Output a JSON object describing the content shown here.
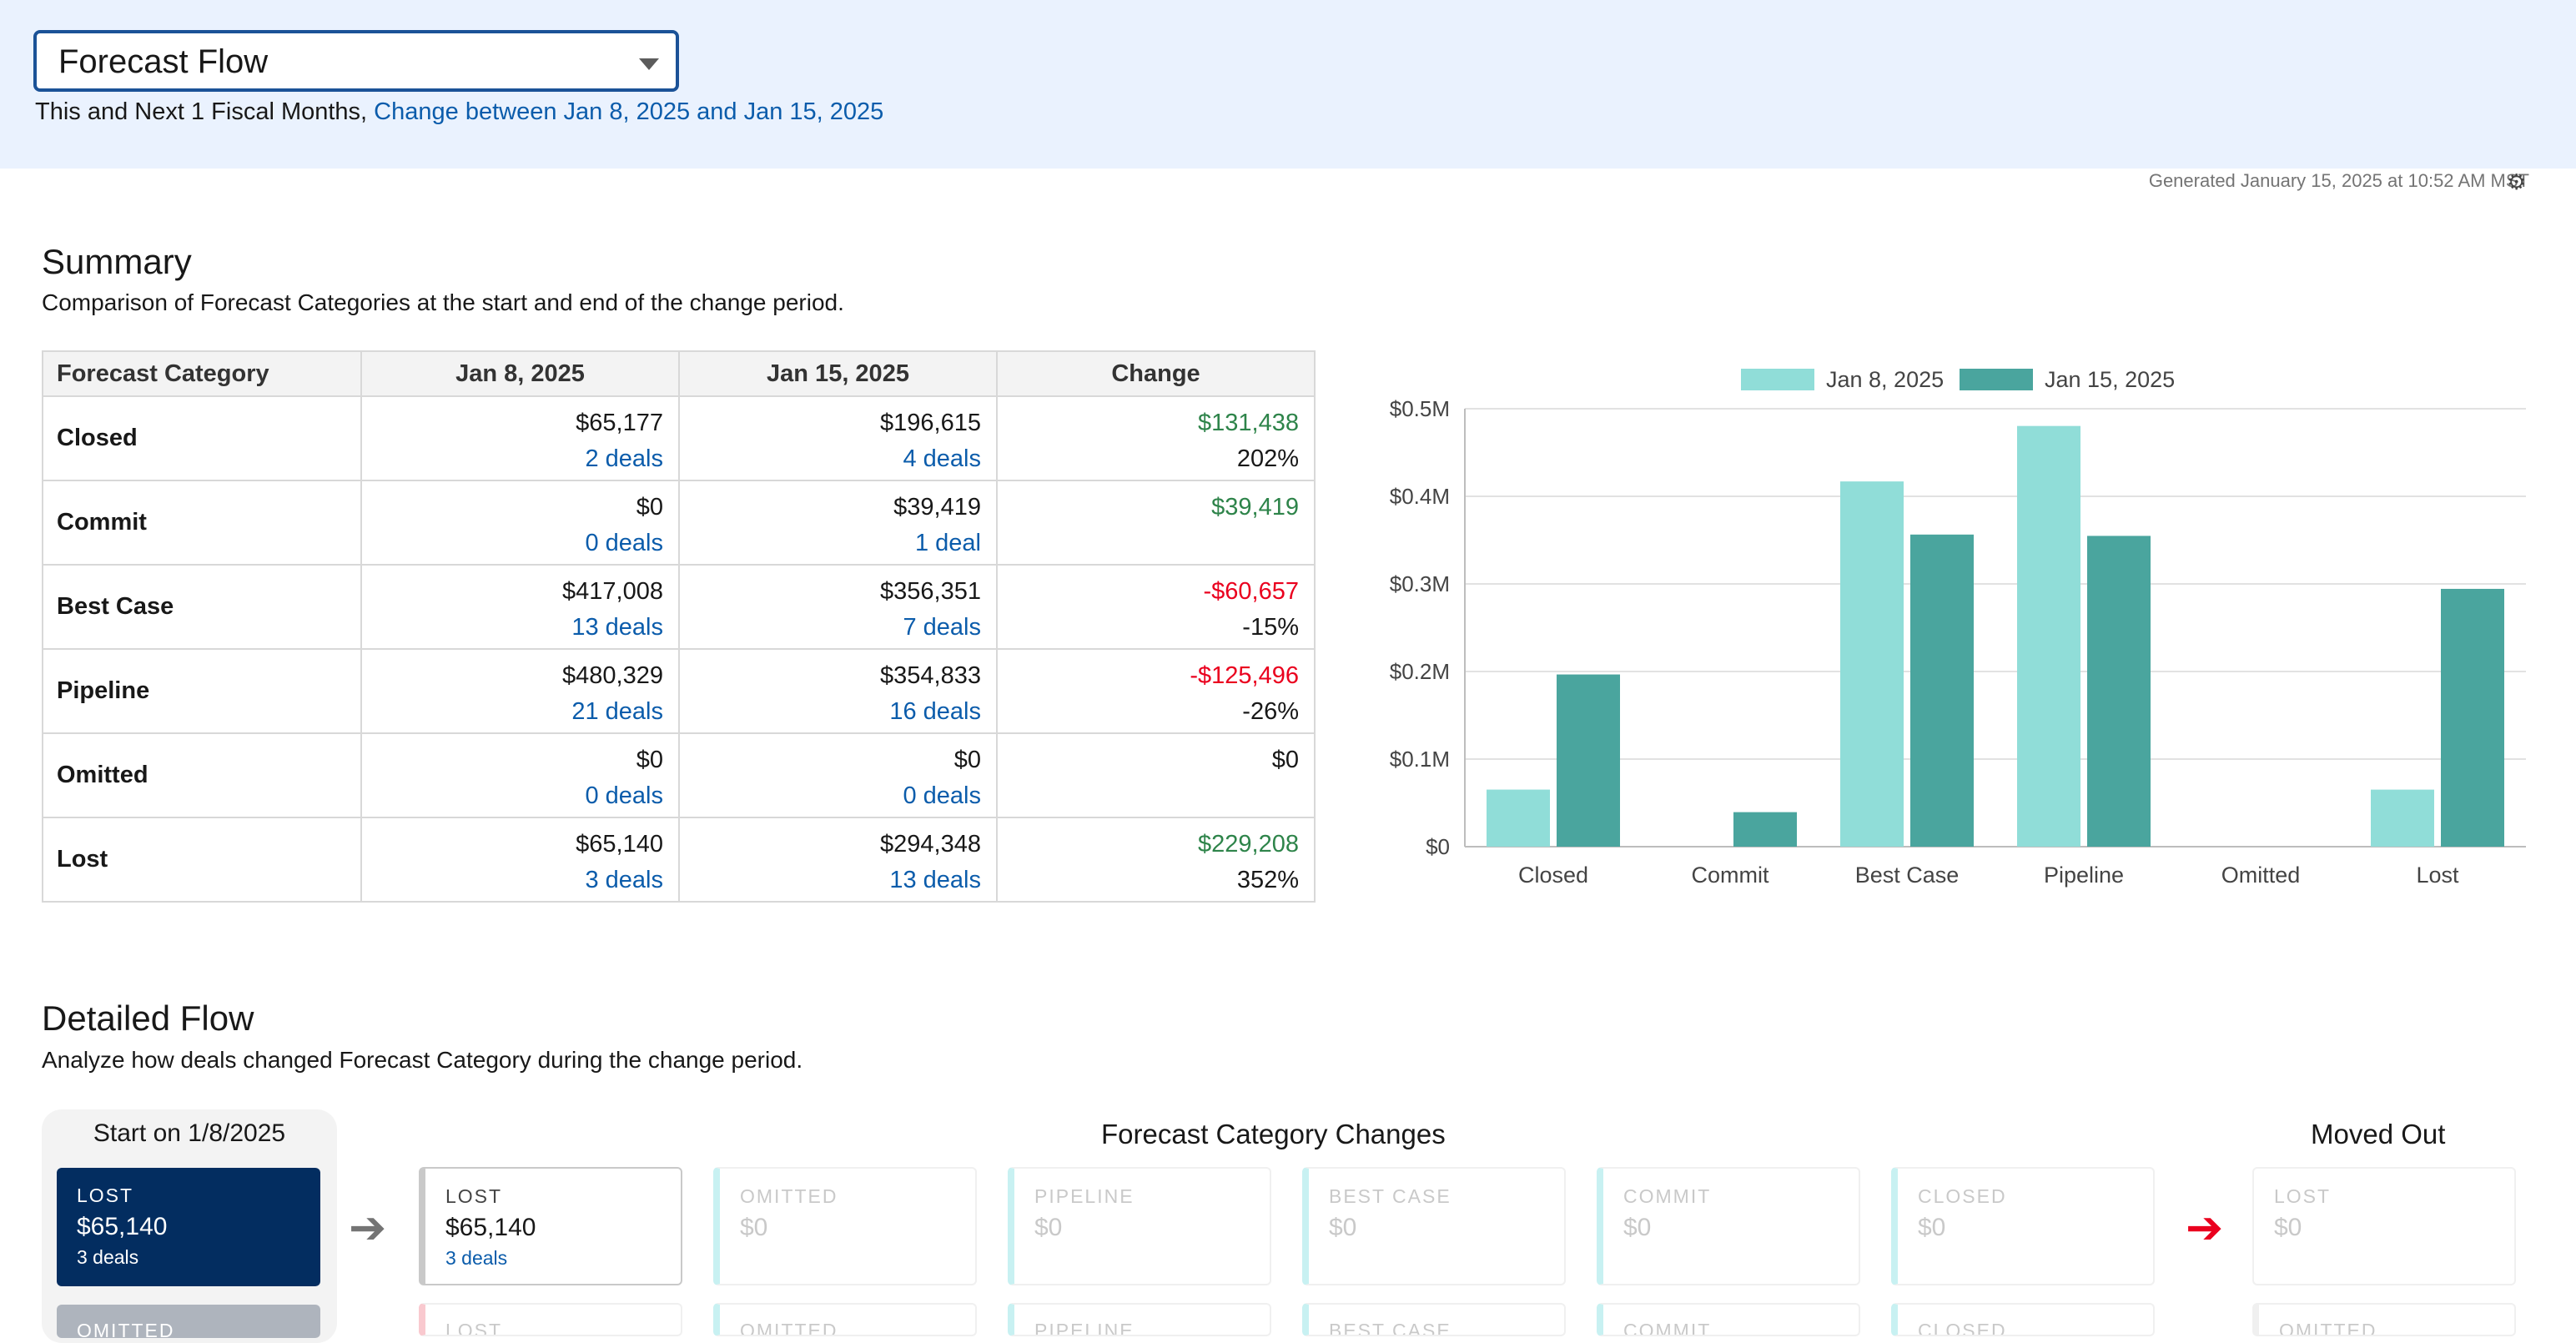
{
  "header": {
    "report_select": "Forecast Flow",
    "subtitle_plain": "This and Next 1 Fiscal Months,",
    "subtitle_link": "Change between Jan 8, 2025 and Jan 15, 2025",
    "generated": "Generated January 15, 2025 at 10:52 AM MST"
  },
  "summary": {
    "title": "Summary",
    "description": "Comparison of Forecast Categories at the start and end of the change period.",
    "columns": [
      "Forecast Category",
      "Jan 8, 2025",
      "Jan 15, 2025",
      "Change"
    ],
    "rows": [
      {
        "category": "Closed",
        "start": "$65,177",
        "start_deals": "2 deals",
        "end": "$196,615",
        "end_deals": "4 deals",
        "change": "$131,438",
        "pct": "202%",
        "dir": "pos"
      },
      {
        "category": "Commit",
        "start": "$0",
        "start_deals": "0 deals",
        "end": "$39,419",
        "end_deals": "1 deal",
        "change": "$39,419",
        "pct": "",
        "dir": "pos"
      },
      {
        "category": "Best Case",
        "start": "$417,008",
        "start_deals": "13 deals",
        "end": "$356,351",
        "end_deals": "7 deals",
        "change": "-$60,657",
        "pct": "-15%",
        "dir": "neg"
      },
      {
        "category": "Pipeline",
        "start": "$480,329",
        "start_deals": "21 deals",
        "end": "$354,833",
        "end_deals": "16 deals",
        "change": "-$125,496",
        "pct": "-26%",
        "dir": "neg"
      },
      {
        "category": "Omitted",
        "start": "$0",
        "start_deals": "0 deals",
        "end": "$0",
        "end_deals": "0 deals",
        "change": "$0",
        "pct": "",
        "dir": "none"
      },
      {
        "category": "Lost",
        "start": "$65,140",
        "start_deals": "3 deals",
        "end": "$294,348",
        "end_deals": "13 deals",
        "change": "$229,208",
        "pct": "352%",
        "dir": "pos"
      }
    ]
  },
  "chart_data": {
    "type": "bar",
    "categories": [
      "Closed",
      "Commit",
      "Best Case",
      "Pipeline",
      "Omitted",
      "Lost"
    ],
    "series": [
      {
        "name": "Jan 8, 2025",
        "values": [
          65177,
          0,
          417008,
          480329,
          0,
          65140
        ],
        "color": "#90ddd8"
      },
      {
        "name": "Jan 15, 2025",
        "values": [
          196615,
          39419,
          356351,
          354833,
          0,
          294348
        ],
        "color": "#4aa59e"
      }
    ],
    "yticks": [
      "$0",
      "$0.1M",
      "$0.2M",
      "$0.3M",
      "$0.4M",
      "$0.5M"
    ],
    "ylim": [
      0,
      500000
    ],
    "legend": "top",
    "grid": true
  },
  "detailed": {
    "title": "Detailed Flow",
    "description": "Analyze how deals changed Forecast Category during the change period.",
    "start_title": "Start on 1/8/2025",
    "changes_title": "Forecast Category Changes",
    "moved_out_title": "Moved Out",
    "start_card": {
      "title": "LOST",
      "amount": "$65,140",
      "deals": "3 deals"
    },
    "start_card_next": "OMITTED",
    "stay_card": {
      "title": "LOST",
      "amount": "$65,140",
      "deals": "3 deals"
    },
    "change_cards": [
      {
        "title": "OMITTED",
        "amount": "$0"
      },
      {
        "title": "PIPELINE",
        "amount": "$0"
      },
      {
        "title": "BEST CASE",
        "amount": "$0"
      },
      {
        "title": "COMMIT",
        "amount": "$0"
      },
      {
        "title": "CLOSED",
        "amount": "$0"
      }
    ],
    "moved_out_card": {
      "title": "LOST",
      "amount": "$0"
    },
    "next_row": [
      "LOST",
      "OMITTED",
      "PIPELINE",
      "BEST CASE",
      "COMMIT",
      "CLOSED",
      "OMITTED"
    ]
  },
  "colors": {
    "accent": "#0b5cab",
    "positive": "#2e844a",
    "negative": "#ea001e",
    "start_card": "#032d60",
    "bar_start": "#90ddd8",
    "bar_end": "#4aa59e"
  }
}
